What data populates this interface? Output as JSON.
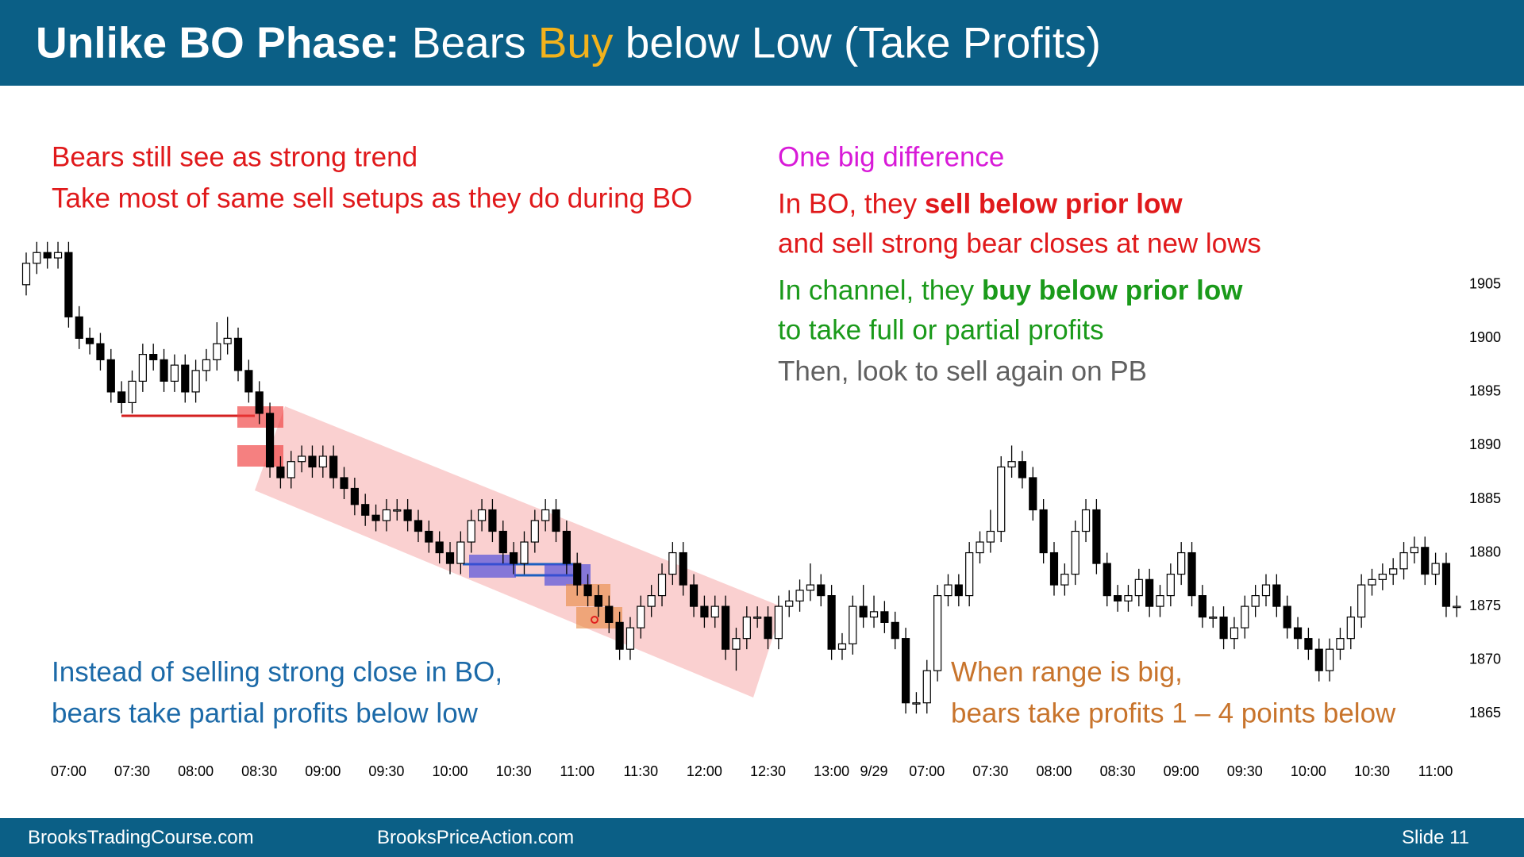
{
  "header": {
    "title": [
      "Unlike BO Phase:",
      "Bears",
      "Buy",
      "below Low (Take Profits)"
    ]
  },
  "notes": {
    "left_top": [
      "Bears still see as strong trend",
      "Take most of same sell setups as they do during BO"
    ],
    "right_heading": "One big difference",
    "right_bo": [
      [
        "In BO, they",
        "sell below prior low"
      ],
      "and sell strong bear closes at new lows"
    ],
    "right_channel": [
      [
        "In channel, they",
        "buy below prior low"
      ],
      "to take full or partial profits"
    ],
    "right_then": "Then, look to sell again on PB",
    "left_bottom": [
      "Instead of selling strong close in BO,",
      "bears take partial profits below low"
    ],
    "right_bottom": [
      "When range is big,",
      "bears take profits 1 – 4 points below"
    ]
  },
  "chart_data": {
    "type": "candlestick",
    "up_color": "#ffffff",
    "down_color": "#000000",
    "outline_color": "#000000",
    "open": [
      1905,
      1907,
      1908,
      1907.5,
      1908,
      1902,
      1900,
      1899.5,
      1898,
      1895,
      1894,
      1896,
      1898.5,
      1898,
      1896,
      1897.5,
      1895,
      1897,
      1898,
      1899.5,
      1900,
      1897,
      1895,
      1893,
      1888,
      1887,
      1888.5,
      1889,
      1888,
      1889,
      1887,
      1886,
      1884.5,
      1883.5,
      1883,
      1884,
      1884,
      1883,
      1882,
      1881,
      1880,
      1879,
      1881,
      1883,
      1884,
      1882,
      1880,
      1879,
      1881,
      1883,
      1884,
      1882,
      1879,
      1877,
      1876,
      1875,
      1873.5,
      1871,
      1873,
      1875,
      1876,
      1878,
      1880,
      1877,
      1875,
      1874,
      1875,
      1871,
      1872,
      1874,
      1874,
      1872,
      1875,
      1875.5,
      1876.5,
      1877,
      1876,
      1871,
      1871.5,
      1875,
      1874,
      1874.5,
      1873.5,
      1872,
      1866,
      1866,
      1869,
      1876,
      1877,
      1876,
      1880,
      1881,
      1882,
      1888,
      1888.5,
      1887,
      1884,
      1880,
      1877,
      1878,
      1882,
      1884,
      1879,
      1876,
      1875.5,
      1876,
      1877.5,
      1875,
      1876,
      1878,
      1880,
      1876,
      1874,
      1874,
      1872,
      1873,
      1875,
      1876,
      1877,
      1875,
      1873,
      1872,
      1871,
      1869,
      1871,
      1872,
      1874,
      1877,
      1877.5,
      1878,
      1878.5,
      1880,
      1880.5,
      1878,
      1879,
      1875
    ],
    "high": [
      1908,
      1909,
      1909,
      1909,
      1909,
      1903,
      1901,
      1900.5,
      1899,
      1896,
      1897,
      1899.5,
      1899.5,
      1899,
      1898.5,
      1898.5,
      1898,
      1899,
      1901.5,
      1902,
      1901,
      1898,
      1896,
      1894,
      1889,
      1889.5,
      1890,
      1890,
      1890,
      1890,
      1888,
      1887,
      1885.5,
      1884.5,
      1885,
      1885,
      1885,
      1884,
      1883,
      1882,
      1881,
      1882,
      1884,
      1885,
      1885,
      1883,
      1881,
      1882,
      1884,
      1885,
      1885,
      1883,
      1880,
      1878,
      1877,
      1876,
      1874.5,
      1874,
      1876,
      1877,
      1879,
      1881,
      1881,
      1878,
      1876,
      1876,
      1876,
      1873,
      1875,
      1875,
      1875,
      1876,
      1876.5,
      1877.5,
      1879,
      1878,
      1877,
      1872.5,
      1876,
      1877,
      1876,
      1875.5,
      1874.5,
      1873,
      1867,
      1870,
      1877,
      1878,
      1878,
      1881,
      1882,
      1884,
      1889,
      1890,
      1889.5,
      1888,
      1885,
      1881,
      1879,
      1883,
      1885,
      1885,
      1880,
      1877,
      1877,
      1878.5,
      1878.5,
      1877,
      1879,
      1881,
      1881,
      1877,
      1875,
      1875,
      1874,
      1876,
      1877,
      1878,
      1878,
      1876,
      1874,
      1873,
      1872,
      1872,
      1873,
      1875,
      1878,
      1878.5,
      1879,
      1879.5,
      1881,
      1881.5,
      1881.5,
      1880,
      1880,
      1876
    ],
    "low": [
      1904,
      1906,
      1906.5,
      1906.5,
      1901,
      1899,
      1898.5,
      1897,
      1894,
      1893,
      1893,
      1895,
      1897,
      1895,
      1895,
      1894,
      1894,
      1896,
      1897,
      1898.5,
      1896,
      1894,
      1892,
      1887,
      1886,
      1886,
      1887.5,
      1887,
      1887,
      1886,
      1885,
      1883.5,
      1882.5,
      1882,
      1882,
      1883,
      1882,
      1881,
      1880,
      1879,
      1878,
      1878,
      1880,
      1882,
      1881,
      1879,
      1878,
      1878,
      1880,
      1882,
      1881,
      1878,
      1876,
      1875,
      1874,
      1872.5,
      1870,
      1870,
      1872,
      1874,
      1875,
      1877,
      1876,
      1874,
      1873,
      1873,
      1870,
      1869,
      1871,
      1873,
      1871,
      1871,
      1874,
      1874.5,
      1875.5,
      1875,
      1870,
      1870,
      1870.5,
      1873,
      1873,
      1872.5,
      1871,
      1865,
      1865,
      1865,
      1868,
      1875,
      1875,
      1875,
      1879,
      1880,
      1881,
      1887,
      1886,
      1883,
      1879,
      1876,
      1876,
      1877,
      1881,
      1878,
      1875,
      1874.5,
      1874.5,
      1875,
      1874,
      1874,
      1875,
      1877,
      1875,
      1873,
      1873,
      1871,
      1871,
      1872,
      1874,
      1875,
      1874,
      1872,
      1871,
      1870,
      1868,
      1868,
      1870,
      1871,
      1873,
      1876,
      1876.5,
      1877,
      1877.5,
      1879,
      1877,
      1877,
      1874,
      1874
    ],
    "close": [
      1907,
      1908,
      1907.5,
      1908,
      1902,
      1900,
      1899.5,
      1898,
      1895,
      1894,
      1896,
      1898.5,
      1898,
      1896,
      1897.5,
      1895,
      1897,
      1898,
      1899.5,
      1900,
      1897,
      1895,
      1893,
      1888,
      1887,
      1888.5,
      1889,
      1888,
      1889,
      1887,
      1886,
      1884.5,
      1883.5,
      1883,
      1884,
      1884,
      1883,
      1882,
      1881,
      1880,
      1879,
      1881,
      1883,
      1884,
      1882,
      1880,
      1879,
      1881,
      1883,
      1884,
      1882,
      1879,
      1877,
      1876,
      1875,
      1873.5,
      1871,
      1873,
      1875,
      1876,
      1878,
      1880,
      1877,
      1875,
      1874,
      1875,
      1871,
      1872,
      1874,
      1874,
      1872,
      1875,
      1875.5,
      1876.5,
      1877,
      1876,
      1871,
      1871.5,
      1875,
      1874,
      1874.5,
      1873.5,
      1872,
      1866,
      1866,
      1869,
      1876,
      1877,
      1876,
      1880,
      1881,
      1882,
      1888,
      1888.5,
      1887,
      1884,
      1880,
      1877,
      1878,
      1882,
      1884,
      1879,
      1876,
      1875.5,
      1876,
      1877.5,
      1875,
      1876,
      1878,
      1880,
      1876,
      1874,
      1874,
      1872,
      1873,
      1875,
      1876,
      1877,
      1875,
      1873,
      1872,
      1871,
      1869,
      1871,
      1872,
      1874,
      1877,
      1877.5,
      1878,
      1878.5,
      1880,
      1880.5,
      1878,
      1879,
      1875,
      1875
    ],
    "xlim": [
      -2,
      137
    ],
    "xticks": [
      {
        "value": 4,
        "label": "07:00"
      },
      {
        "value": 10,
        "label": "07:30"
      },
      {
        "value": 16,
        "label": "08:00"
      },
      {
        "value": 22,
        "label": "08:30"
      },
      {
        "value": 28,
        "label": "09:00"
      },
      {
        "value": 34,
        "label": "09:30"
      },
      {
        "value": 40,
        "label": "10:00"
      },
      {
        "value": 46,
        "label": "10:30"
      },
      {
        "value": 52,
        "label": "11:00"
      },
      {
        "value": 58,
        "label": "11:30"
      },
      {
        "value": 64,
        "label": "12:00"
      },
      {
        "value": 70,
        "label": "12:30"
      },
      {
        "value": 76,
        "label": "13:00"
      },
      {
        "value": 80,
        "label": "9/29"
      },
      {
        "value": 85,
        "label": "07:00"
      },
      {
        "value": 91,
        "label": "07:30"
      },
      {
        "value": 97,
        "label": "08:00"
      },
      {
        "value": 103,
        "label": "08:30"
      },
      {
        "value": 109,
        "label": "09:00"
      },
      {
        "value": 115,
        "label": "09:30"
      },
      {
        "value": 121,
        "label": "10:00"
      },
      {
        "value": 127,
        "label": "10:30"
      },
      {
        "value": 133,
        "label": "11:00"
      }
    ],
    "ylim": [
      1862.5,
      1909.5
    ],
    "yticks": [
      1865,
      1870,
      1875,
      1880,
      1885,
      1890,
      1895,
      1900,
      1905
    ]
  },
  "footer": {
    "left": "BrooksTradingCourse.com",
    "middle": "BrooksPriceAction.com",
    "slide": "Slide 11"
  }
}
